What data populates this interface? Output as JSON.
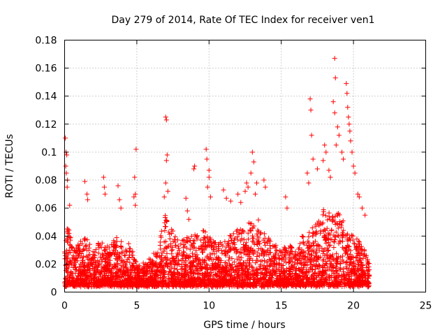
{
  "chart_data": {
    "type": "scatter",
    "title": "Day 279 of 2014, Rate Of TEC Index for receiver ven1",
    "xlabel": "GPS time / hours",
    "ylabel": "ROTI / TECUs",
    "xlim": [
      0,
      25
    ],
    "ylim": [
      0,
      0.18
    ],
    "xticks": [
      0,
      5,
      10,
      15,
      20,
      25
    ],
    "xtick_labels": [
      "0",
      "5",
      "10",
      "15",
      "20",
      "25"
    ],
    "yticks": [
      0,
      0.02,
      0.04,
      0.06,
      0.08,
      0.1,
      0.12,
      0.14,
      0.16,
      0.18
    ],
    "ytick_labels": [
      "0",
      "0.02",
      "0.04",
      "0.06",
      "0.08",
      "0.1",
      "0.12",
      "0.14",
      "0.16",
      "0.18"
    ],
    "grid": true,
    "marker": "+",
    "color": "#ff0000",
    "series": [
      {
        "name": "ROTI",
        "x_range": [
          0,
          21.1
        ],
        "typical_min": 0.005,
        "envelope_x": [
          0,
          0.3,
          0.6,
          1.0,
          1.5,
          2.0,
          2.5,
          3.0,
          3.5,
          4.0,
          4.5,
          5.0,
          5.5,
          6.0,
          6.5,
          7.0,
          7.5,
          8.0,
          8.5,
          9.0,
          9.5,
          10.0,
          10.5,
          11.0,
          11.5,
          12.0,
          12.5,
          13.0,
          13.5,
          14.0,
          14.5,
          15.0,
          15.5,
          16.0,
          16.5,
          17.0,
          17.5,
          18.0,
          18.5,
          19.0,
          19.5,
          20.0,
          20.5,
          21.1
        ],
        "envelope_max": [
          0.05,
          0.045,
          0.03,
          0.035,
          0.04,
          0.028,
          0.038,
          0.032,
          0.04,
          0.035,
          0.035,
          0.02,
          0.02,
          0.025,
          0.03,
          0.06,
          0.045,
          0.035,
          0.04,
          0.04,
          0.045,
          0.04,
          0.035,
          0.035,
          0.04,
          0.045,
          0.05,
          0.055,
          0.05,
          0.04,
          0.035,
          0.03,
          0.035,
          0.03,
          0.04,
          0.045,
          0.05,
          0.06,
          0.055,
          0.06,
          0.045,
          0.04,
          0.035,
          0.025
        ],
        "spikes": [
          {
            "x": 0.05,
            "y": 0.11
          },
          {
            "x": 0.1,
            "y": 0.1
          },
          {
            "x": 0.15,
            "y": 0.098
          },
          {
            "x": 0.08,
            "y": 0.09
          },
          {
            "x": 0.12,
            "y": 0.085
          },
          {
            "x": 0.2,
            "y": 0.08
          },
          {
            "x": 0.18,
            "y": 0.075
          },
          {
            "x": 0.35,
            "y": 0.062
          },
          {
            "x": 1.4,
            "y": 0.079
          },
          {
            "x": 1.55,
            "y": 0.07
          },
          {
            "x": 1.6,
            "y": 0.066
          },
          {
            "x": 2.7,
            "y": 0.082
          },
          {
            "x": 2.75,
            "y": 0.075
          },
          {
            "x": 2.8,
            "y": 0.07
          },
          {
            "x": 3.7,
            "y": 0.076
          },
          {
            "x": 3.8,
            "y": 0.066
          },
          {
            "x": 3.9,
            "y": 0.06
          },
          {
            "x": 4.8,
            "y": 0.068
          },
          {
            "x": 4.9,
            "y": 0.062
          },
          {
            "x": 4.95,
            "y": 0.102
          },
          {
            "x": 4.85,
            "y": 0.082
          },
          {
            "x": 4.9,
            "y": 0.07
          },
          {
            "x": 7.0,
            "y": 0.125
          },
          {
            "x": 7.05,
            "y": 0.123
          },
          {
            "x": 7.1,
            "y": 0.098
          },
          {
            "x": 7.05,
            "y": 0.094
          },
          {
            "x": 7.0,
            "y": 0.078
          },
          {
            "x": 7.15,
            "y": 0.072
          },
          {
            "x": 6.9,
            "y": 0.068
          },
          {
            "x": 8.4,
            "y": 0.067
          },
          {
            "x": 8.5,
            "y": 0.058
          },
          {
            "x": 8.6,
            "y": 0.052
          },
          {
            "x": 9.0,
            "y": 0.09
          },
          {
            "x": 8.95,
            "y": 0.088
          },
          {
            "x": 9.8,
            "y": 0.102
          },
          {
            "x": 9.85,
            "y": 0.095
          },
          {
            "x": 10.0,
            "y": 0.087
          },
          {
            "x": 10.0,
            "y": 0.082
          },
          {
            "x": 9.9,
            "y": 0.075
          },
          {
            "x": 10.1,
            "y": 0.068
          },
          {
            "x": 11.0,
            "y": 0.073
          },
          {
            "x": 11.2,
            "y": 0.067
          },
          {
            "x": 11.5,
            "y": 0.065
          },
          {
            "x": 12.0,
            "y": 0.07
          },
          {
            "x": 12.2,
            "y": 0.064
          },
          {
            "x": 12.6,
            "y": 0.078
          },
          {
            "x": 12.7,
            "y": 0.075
          },
          {
            "x": 12.5,
            "y": 0.072
          },
          {
            "x": 13.0,
            "y": 0.1
          },
          {
            "x": 13.1,
            "y": 0.093
          },
          {
            "x": 12.9,
            "y": 0.085
          },
          {
            "x": 13.3,
            "y": 0.078
          },
          {
            "x": 13.2,
            "y": 0.07
          },
          {
            "x": 13.8,
            "y": 0.08
          },
          {
            "x": 13.9,
            "y": 0.075
          },
          {
            "x": 15.3,
            "y": 0.068
          },
          {
            "x": 15.4,
            "y": 0.06
          },
          {
            "x": 16.8,
            "y": 0.085
          },
          {
            "x": 16.9,
            "y": 0.078
          },
          {
            "x": 17.0,
            "y": 0.138
          },
          {
            "x": 17.05,
            "y": 0.13
          },
          {
            "x": 17.1,
            "y": 0.112
          },
          {
            "x": 17.2,
            "y": 0.095
          },
          {
            "x": 17.5,
            "y": 0.088
          },
          {
            "x": 18.0,
            "y": 0.105
          },
          {
            "x": 18.1,
            "y": 0.1
          },
          {
            "x": 17.9,
            "y": 0.094
          },
          {
            "x": 18.3,
            "y": 0.087
          },
          {
            "x": 18.4,
            "y": 0.082
          },
          {
            "x": 18.6,
            "y": 0.136
          },
          {
            "x": 18.7,
            "y": 0.128
          },
          {
            "x": 18.7,
            "y": 0.167
          },
          {
            "x": 18.75,
            "y": 0.153
          },
          {
            "x": 18.9,
            "y": 0.118
          },
          {
            "x": 19.0,
            "y": 0.112
          },
          {
            "x": 18.8,
            "y": 0.105
          },
          {
            "x": 19.2,
            "y": 0.1
          },
          {
            "x": 19.3,
            "y": 0.095
          },
          {
            "x": 19.5,
            "y": 0.149
          },
          {
            "x": 19.55,
            "y": 0.142
          },
          {
            "x": 19.6,
            "y": 0.132
          },
          {
            "x": 19.65,
            "y": 0.125
          },
          {
            "x": 19.7,
            "y": 0.12
          },
          {
            "x": 19.75,
            "y": 0.115
          },
          {
            "x": 19.8,
            "y": 0.108
          },
          {
            "x": 19.9,
            "y": 0.1
          },
          {
            "x": 20.0,
            "y": 0.09
          },
          {
            "x": 20.1,
            "y": 0.085
          },
          {
            "x": 20.3,
            "y": 0.07
          },
          {
            "x": 20.4,
            "y": 0.068
          },
          {
            "x": 20.6,
            "y": 0.06
          },
          {
            "x": 20.8,
            "y": 0.055
          }
        ]
      }
    ]
  }
}
